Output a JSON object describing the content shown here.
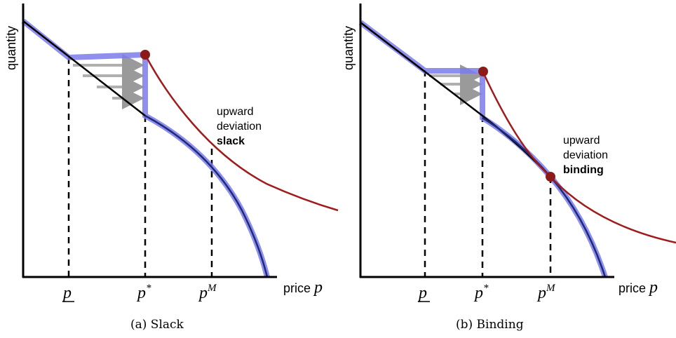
{
  "panels": [
    {
      "caption": "(a) Slack",
      "y_axis_label": "quantity",
      "x_axis_label": "price",
      "x_axis_symbol": "p",
      "ticks": [
        {
          "base": "p",
          "underline": true,
          "sup": ""
        },
        {
          "base": "p",
          "underline": false,
          "sup": "*"
        },
        {
          "base": "p",
          "underline": false,
          "sup": "M"
        }
      ],
      "annotation": {
        "line1": "upward",
        "line2": "deviation",
        "line3": "slack"
      }
    },
    {
      "caption": "(b) Binding",
      "y_axis_label": "quantity",
      "x_axis_label": "price",
      "x_axis_symbol": "p",
      "ticks": [
        {
          "base": "p",
          "underline": true,
          "sup": ""
        },
        {
          "base": "p",
          "underline": false,
          "sup": "*"
        },
        {
          "base": "p",
          "underline": false,
          "sup": "M"
        }
      ],
      "annotation": {
        "line1": "upward",
        "line2": "deviation",
        "line3": "binding"
      }
    }
  ],
  "colors": {
    "axis": "#000000",
    "demand_line": "#000000",
    "profit_curve": "#a01c1c",
    "blue_highlight": "#7b7bea",
    "dark_blue": "#1c2a78",
    "point": "#8b1a1a",
    "arrows": "#b0b0b0"
  }
}
